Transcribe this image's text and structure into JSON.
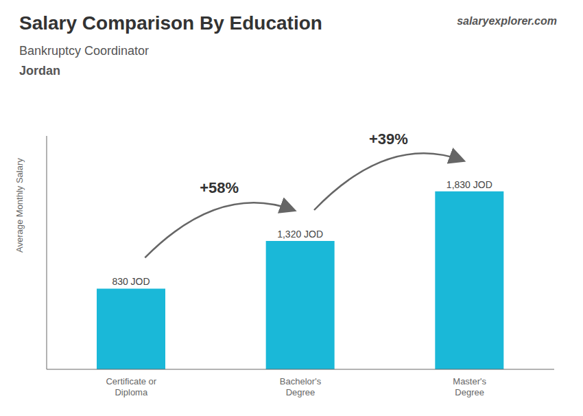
{
  "chart_data": {
    "type": "bar",
    "title": "Salary Comparison By Education",
    "subtitle": "Bankruptcy Coordinator",
    "annotations": {
      "country": "Jordan",
      "watermark": [
        "salary",
        "explorer.com"
      ],
      "changes": [
        "+58%",
        "+39%"
      ]
    },
    "ylabel": "Average Monthly Salary",
    "categories": [
      "Certificate or\nDiploma",
      "Bachelor's\nDegree",
      "Master's\nDegree"
    ],
    "values": [
      830,
      1320,
      1830
    ],
    "value_labels": [
      "830 JOD",
      "1,320 JOD",
      "1,830 JOD"
    ],
    "data_labels": true,
    "color": "#1ab8d8",
    "ylim": [
      0,
      2400
    ],
    "tick_labels": "x",
    "grid": false
  }
}
